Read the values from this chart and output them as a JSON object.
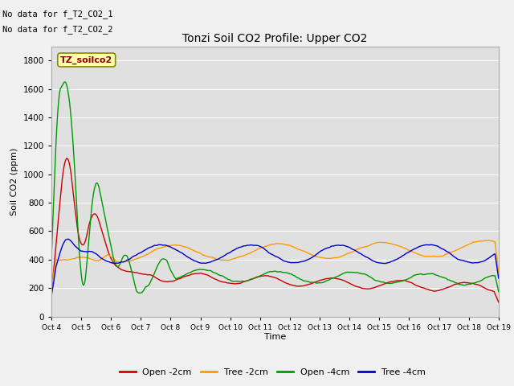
{
  "title": "Tonzi Soil CO2 Profile: Upper CO2",
  "ylabel": "Soil CO2 (ppm)",
  "xlabel": "Time",
  "annotation1": "No data for f_T2_CO2_1",
  "annotation2": "No data for f_T2_CO2_2",
  "legend_label": "TZ_soilco2",
  "series_labels": [
    "Open -2cm",
    "Tree -2cm",
    "Open -4cm",
    "Tree -4cm"
  ],
  "series_colors": [
    "#cc0000",
    "#ff9900",
    "#009900",
    "#0000cc"
  ],
  "ylim": [
    0,
    1900
  ],
  "background_color": "#f0f0f0",
  "plot_bg_color": "#e0e0e0",
  "x_tick_labels": [
    "Oct 4",
    "Oct 5",
    "Oct 6",
    "Oct 7",
    "Oct 8",
    "Oct 9",
    "Oct 10",
    "Oct 11",
    "Oct 12",
    "Oct 13",
    "Oct 14",
    "Oct 15",
    "Oct 16",
    "Oct 17",
    "Oct 18",
    "Oct 19"
  ],
  "num_points": 500
}
